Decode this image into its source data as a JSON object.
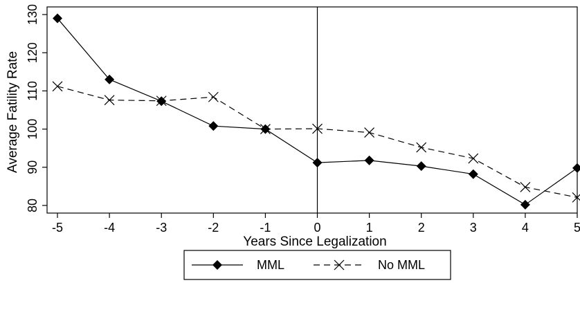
{
  "chart_data": {
    "type": "line",
    "xlabel": "Years Since Legalization",
    "ylabel": "Average Fatility Rate",
    "x": [
      -5,
      -4,
      -3,
      -2,
      -1,
      0,
      1,
      2,
      3,
      4,
      5
    ],
    "xticks": [
      "-5",
      "-4",
      "-3",
      "-2",
      "-1",
      "0",
      "1",
      "2",
      "3",
      "4",
      "5"
    ],
    "yticks": [
      "80",
      "90",
      "100",
      "110",
      "120",
      "130"
    ],
    "xlim": [
      -5.2,
      5
    ],
    "ylim": [
      78,
      132
    ],
    "reference_line_x": 0,
    "grid": false,
    "legend_position": "bottom",
    "series": [
      {
        "name": "MML",
        "values": [
          129,
          113,
          107.3,
          100.8,
          100,
          91.2,
          91.8,
          90.3,
          88.2,
          80.2,
          89.8
        ],
        "line_style": "solid",
        "marker": "diamond"
      },
      {
        "name": "No MML",
        "values": [
          111.2,
          107.6,
          107.4,
          108.4,
          100,
          100.1,
          99.1,
          95.2,
          92.3,
          84.8,
          82.1
        ],
        "line_style": "dashed",
        "marker": "x"
      }
    ]
  }
}
